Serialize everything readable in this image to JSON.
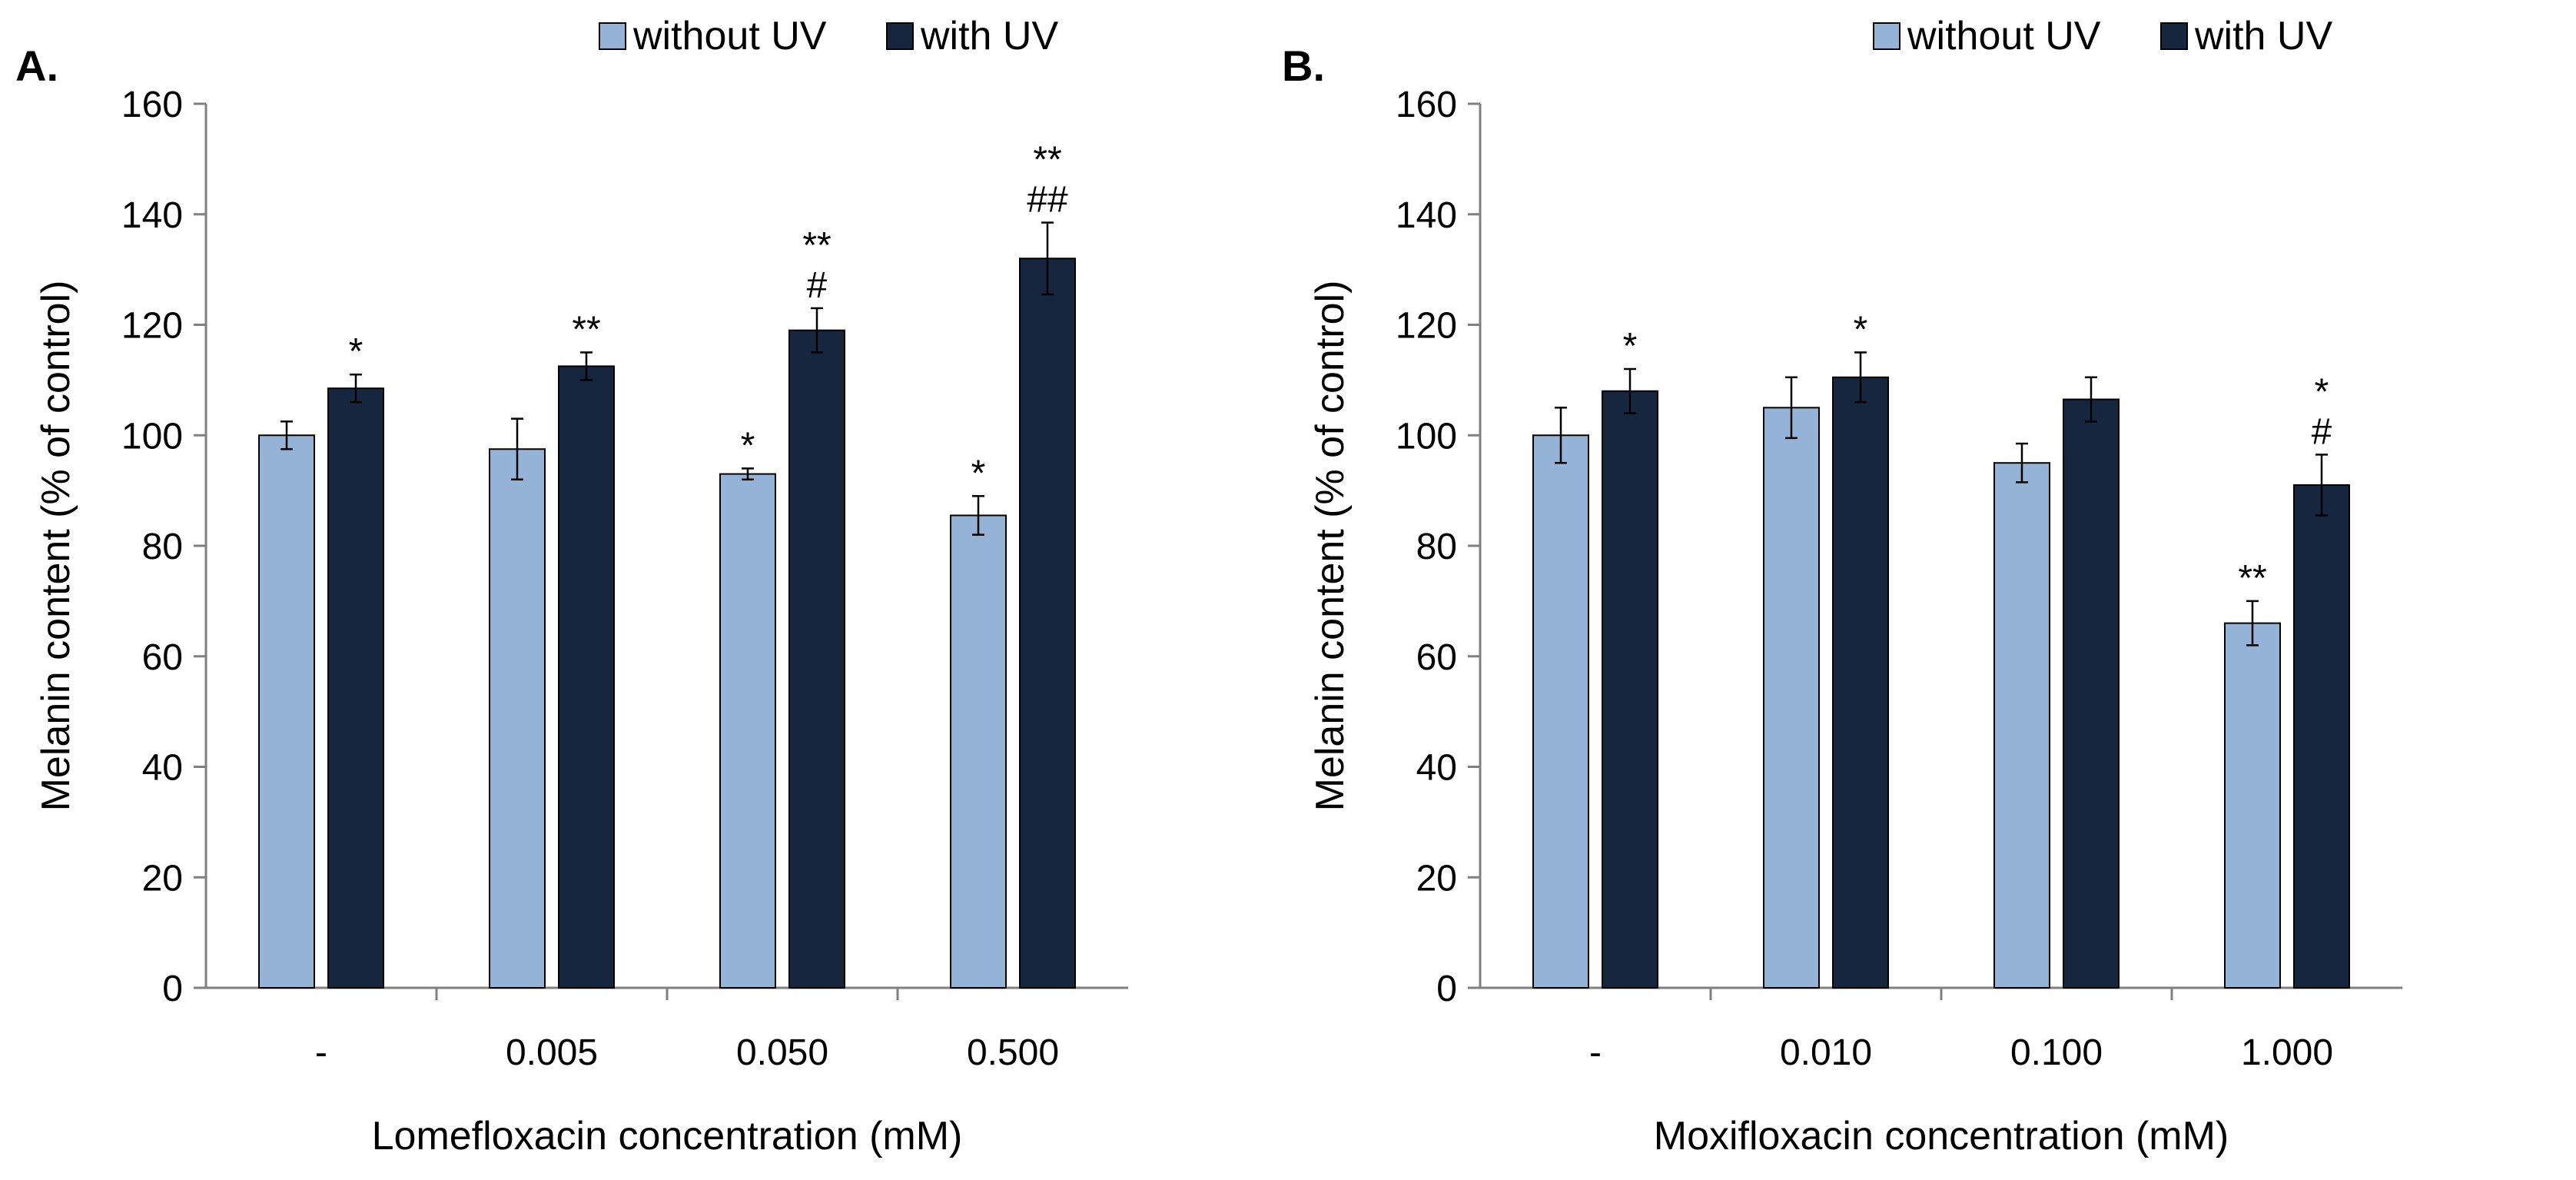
{
  "colors": {
    "without_uv": "#95B3D7",
    "with_uv": "#17263F",
    "axis": "#808080",
    "text": "#000000"
  },
  "chart_data": [
    {
      "type": "bar",
      "panel_label": "A.",
      "xlabel": "Lomefloxacin concentration (mM)",
      "ylabel": "Melanin content (% of control)",
      "ylim": [
        0,
        160
      ],
      "yticks": [
        "0",
        "20",
        "40",
        "60",
        "80",
        "100",
        "120",
        "140",
        "160"
      ],
      "grid": false,
      "legend_position": "top-right",
      "categories": [
        "-",
        "0.005",
        "0.050",
        "0.500"
      ],
      "series": [
        {
          "name": "without UV",
          "values": [
            100,
            97.5,
            93,
            85.5
          ],
          "errors": [
            2.5,
            5.5,
            1.0,
            3.5
          ],
          "annotations": [
            [],
            [],
            [
              "*"
            ],
            [
              "*"
            ]
          ]
        },
        {
          "name": "with UV",
          "values": [
            108.5,
            112.5,
            119,
            132
          ],
          "errors": [
            2.5,
            2.5,
            4.0,
            6.5
          ],
          "annotations": [
            [
              "*"
            ],
            [
              "**"
            ],
            [
              "#",
              "**"
            ],
            [
              "##",
              "**"
            ]
          ]
        }
      ]
    },
    {
      "type": "bar",
      "panel_label": "B.",
      "xlabel": "Moxifloxacin concentration (mM)",
      "ylabel": "Melanin content (% of control)",
      "ylim": [
        0,
        160
      ],
      "yticks": [
        "0",
        "20",
        "40",
        "60",
        "80",
        "100",
        "120",
        "140",
        "160"
      ],
      "grid": false,
      "legend_position": "top-right",
      "categories": [
        "-",
        "0.010",
        "0.100",
        "1.000"
      ],
      "series": [
        {
          "name": "without UV",
          "values": [
            100,
            105,
            95,
            66
          ],
          "errors": [
            5.0,
            5.5,
            3.5,
            4.0
          ],
          "annotations": [
            [],
            [],
            [],
            [
              "**"
            ]
          ]
        },
        {
          "name": "with UV",
          "values": [
            108,
            110.5,
            106.5,
            91
          ],
          "errors": [
            4.0,
            4.5,
            4.0,
            5.5
          ],
          "annotations": [
            [
              "*"
            ],
            [
              "*"
            ],
            [],
            [
              "#",
              "*"
            ]
          ]
        }
      ]
    }
  ]
}
